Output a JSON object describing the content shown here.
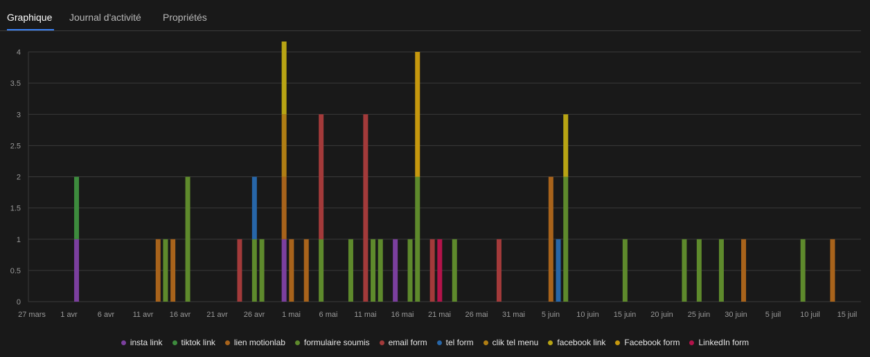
{
  "tabs": [
    {
      "label": "Graphique",
      "active": true
    },
    {
      "label": "Journal d'activité",
      "active": false
    },
    {
      "label": "Propriétés",
      "active": false
    }
  ],
  "chart_data": {
    "type": "bar",
    "stacked": true,
    "x_start": "2024-03-27",
    "x_end": "2024-07-18",
    "x_ticks": [
      "27 mars",
      "1 avr",
      "6 avr",
      "11 avr",
      "16 avr",
      "21 avr",
      "26 avr",
      "1 mai",
      "6 mai",
      "11 mai",
      "16 mai",
      "21 mai",
      "26 mai",
      "31 mai",
      "5 juin",
      "10 juin",
      "15 juin",
      "20 juin",
      "25 juin",
      "30 juin",
      "5 juil",
      "10 juil",
      "15 juil"
    ],
    "y_ticks": [
      "0",
      "0.5",
      "1",
      "1.5",
      "2",
      "2.5",
      "3",
      "3.5",
      "4"
    ],
    "ylim": [
      0,
      4
    ],
    "grid": true,
    "legend_position": "bottom",
    "series": [
      {
        "name": "insta link",
        "color": "#7b3f9e",
        "points": [
          [
            "2024-04-02",
            1
          ],
          [
            "2024-04-30",
            1
          ],
          [
            "2024-05-15",
            1
          ]
        ]
      },
      {
        "name": "tiktok link",
        "color": "#3d8b3d",
        "points": [
          [
            "2024-04-02",
            1
          ]
        ]
      },
      {
        "name": "lien motionlab",
        "color": "#a8631b",
        "points": [
          [
            "2024-04-13",
            1
          ],
          [
            "2024-04-15",
            1
          ],
          [
            "2024-04-30",
            1
          ],
          [
            "2024-05-01",
            1
          ],
          [
            "2024-05-03",
            1
          ],
          [
            "2024-06-05",
            2
          ],
          [
            "2024-07-01",
            1
          ],
          [
            "2024-07-13",
            1
          ]
        ]
      },
      {
        "name": "formulaire soumis",
        "color": "#5e8a2c",
        "points": [
          [
            "2024-04-14",
            1
          ],
          [
            "2024-04-17",
            2
          ],
          [
            "2024-04-26",
            1
          ],
          [
            "2024-04-27",
            1
          ],
          [
            "2024-05-05",
            1
          ],
          [
            "2024-05-09",
            1
          ],
          [
            "2024-05-12",
            1
          ],
          [
            "2024-05-13",
            1
          ],
          [
            "2024-05-17",
            1
          ],
          [
            "2024-05-18",
            2
          ],
          [
            "2024-05-23",
            1
          ],
          [
            "2024-06-07",
            2
          ],
          [
            "2024-06-15",
            1
          ],
          [
            "2024-06-23",
            1
          ],
          [
            "2024-06-25",
            1
          ],
          [
            "2024-06-28",
            1
          ],
          [
            "2024-07-09",
            1
          ]
        ]
      },
      {
        "name": "email form",
        "color": "#a33a3a",
        "points": [
          [
            "2024-04-24",
            1
          ],
          [
            "2024-05-05",
            2
          ],
          [
            "2024-05-11",
            3
          ],
          [
            "2024-05-20",
            1
          ],
          [
            "2024-05-29",
            1
          ]
        ]
      },
      {
        "name": "tel form",
        "color": "#2766a8",
        "points": [
          [
            "2024-04-26",
            1
          ],
          [
            "2024-06-06",
            1
          ]
        ]
      },
      {
        "name": "clik tel menu",
        "color": "#b07e14",
        "points": [
          [
            "2024-04-30",
            1
          ]
        ]
      },
      {
        "name": "facebook link",
        "color": "#b8a414",
        "points": [
          [
            "2024-04-30",
            2
          ],
          [
            "2024-06-07",
            1
          ]
        ]
      },
      {
        "name": "Facebook form",
        "color": "#c6980e",
        "points": [
          [
            "2024-05-18",
            2
          ]
        ]
      },
      {
        "name": "LinkedIn form",
        "color": "#b3134a",
        "points": [
          [
            "2024-05-21",
            1
          ]
        ]
      }
    ]
  }
}
